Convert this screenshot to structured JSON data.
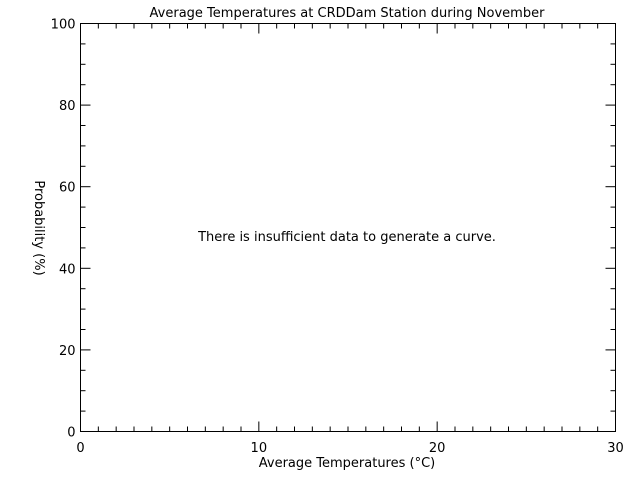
{
  "chart_data": {
    "type": "line",
    "title": "Average Temperatures at CRDDam Station during November",
    "xlabel": "Average Temperatures (°C)",
    "ylabel": "Probability (%)",
    "xlim": [
      0,
      30
    ],
    "ylim": [
      0,
      100
    ],
    "x_ticks": [
      0,
      10,
      20,
      30
    ],
    "y_ticks": [
      0,
      20,
      40,
      60,
      80,
      100
    ],
    "x_minor_step": 1,
    "y_minor_step": 5,
    "grid": false,
    "series": [],
    "annotation": "There is insufficient data to generate a curve."
  }
}
